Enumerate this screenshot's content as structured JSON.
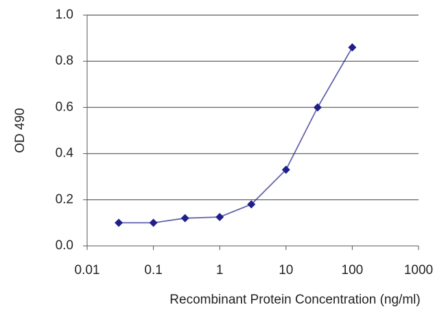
{
  "chart_data": {
    "type": "line",
    "x_label": "Recombinant Protein Concentration (ng/ml)",
    "y_label": "OD 490",
    "x": [
      0.03,
      0.1,
      0.3,
      1,
      3,
      10,
      30,
      100
    ],
    "values": [
      0.1,
      0.1,
      0.12,
      0.125,
      0.18,
      0.33,
      0.6,
      0.86
    ],
    "color": "#1f1f8a",
    "x_log": true,
    "xlim": [
      0.01,
      1000
    ],
    "xticks": [
      0.01,
      0.1,
      1,
      10,
      100,
      1000
    ],
    "ylim": [
      0,
      1
    ],
    "yticks": [
      {
        "value": 0,
        "label": "0.0"
      },
      0.2,
      0.4,
      0.6,
      0.8,
      {
        "value": 1,
        "label": "1.0"
      }
    ],
    "grid": true
  }
}
